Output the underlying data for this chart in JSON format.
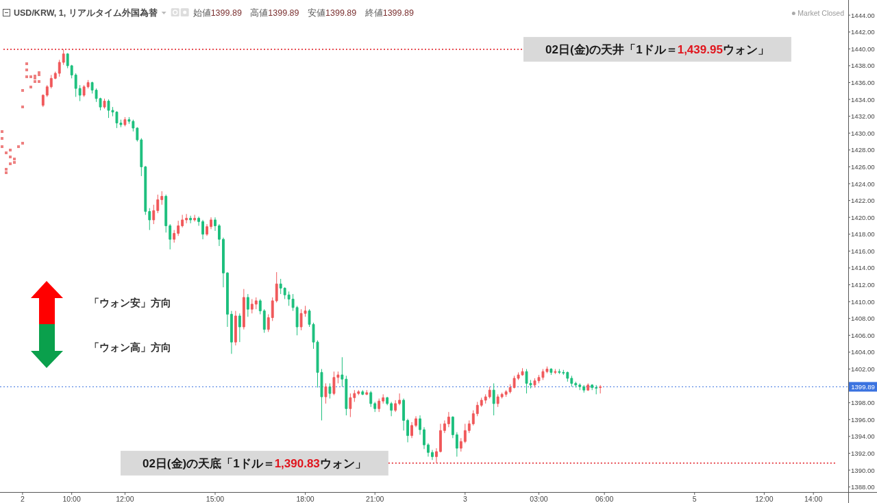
{
  "chart_data": {
    "type": "candlestick",
    "title": "USD/KRW, 1, リアルタイム外国為替",
    "subtitle": "始値1399.89 高値1399.89 安値1399.89 終値1399.89",
    "annotations": [
      "Market Closed",
      "「ウォン安」方向",
      "「ウォン高」方向"
    ],
    "categories": [
      null,
      null,
      null,
      null,
      null,
      "2",
      null,
      null,
      null,
      null,
      null,
      null,
      null,
      null,
      null,
      null,
      null,
      "10:00",
      null,
      null,
      null,
      null,
      null,
      null,
      null,
      null,
      null,
      null,
      null,
      null,
      "12:00",
      null,
      null,
      null,
      null,
      null,
      null,
      null,
      null,
      null,
      null,
      null,
      null,
      null,
      null,
      null,
      null,
      null,
      null,
      null,
      null,
      null,
      "15:00",
      null,
      null,
      null,
      null,
      null,
      null,
      null,
      null,
      null,
      null,
      null,
      null,
      null,
      null,
      null,
      null,
      null,
      null,
      null,
      null,
      null,
      "18:00",
      null,
      null,
      null,
      null,
      null,
      null,
      null,
      null,
      null,
      null,
      null,
      null,
      null,
      null,
      null,
      null,
      "21:00",
      null,
      null,
      null,
      null,
      null,
      null,
      null,
      null,
      null,
      null,
      null,
      null,
      null,
      null,
      null,
      null,
      null,
      null,
      null,
      null,
      null,
      "3",
      null,
      null,
      null,
      null,
      null,
      null,
      null,
      null,
      null,
      null,
      null,
      null,
      null,
      null,
      null,
      null,
      null,
      "03:00",
      null,
      null,
      null,
      null,
      null,
      null,
      null,
      null,
      null,
      null,
      null,
      null,
      null,
      null,
      null,
      "06:00",
      null,
      null,
      null,
      null,
      null,
      null,
      null,
      null,
      null,
      null,
      null,
      null,
      null,
      null,
      null,
      null,
      null,
      null,
      null,
      null,
      null,
      "5",
      null,
      null,
      null,
      null,
      null,
      null,
      null,
      null,
      null,
      null,
      null,
      null,
      null,
      null,
      null,
      null,
      "12:00",
      null,
      null,
      null,
      null,
      null,
      null,
      null,
      null,
      null,
      null,
      null,
      "14:00",
      null,
      null,
      null,
      null,
      null,
      null,
      null,
      null
    ],
    "ohlc": [
      null,
      null,
      null,
      null,
      null,
      null,
      null,
      null,
      null,
      null,
      [
        1433.3,
        1434.6,
        1433.1,
        1434.5
      ],
      [
        1434.5,
        1435.7,
        1434.3,
        1435.5
      ],
      [
        1435.5,
        1436.9,
        1435.3,
        1436.5
      ],
      [
        1436.5,
        1437.3,
        1436.4,
        1437.1
      ],
      [
        1437.1,
        1438.7,
        1436.7,
        1438.4
      ],
      [
        1438.4,
        1439.95,
        1438.1,
        1439.4
      ],
      [
        1439.4,
        1439.5,
        1437.7,
        1438.0
      ],
      [
        1438.0,
        1438.1,
        1436.5,
        1436.9
      ],
      [
        1436.9,
        1437.1,
        1434.3,
        1435.3
      ],
      [
        1435.3,
        1435.7,
        1433.8,
        1434.5
      ],
      [
        1434.5,
        1435.7,
        1434.3,
        1435.5
      ],
      [
        1435.5,
        1436.3,
        1435.3,
        1436.0
      ],
      [
        1436.0,
        1436.1,
        1434.7,
        1435.1
      ],
      [
        1435.1,
        1435.3,
        1433.7,
        1434.1
      ],
      [
        1434.1,
        1434.2,
        1432.7,
        1433.1
      ],
      [
        1433.1,
        1434.1,
        1432.9,
        1433.8
      ],
      [
        1433.8,
        1434.0,
        1431.8,
        1432.7
      ],
      [
        1432.7,
        1433.1,
        1432.0,
        1432.5
      ],
      [
        1432.5,
        1432.6,
        1430.6,
        1431.2
      ],
      [
        1431.2,
        1431.6,
        1430.7,
        1431.0
      ],
      [
        1431.0,
        1431.9,
        1430.8,
        1431.6
      ],
      [
        1431.6,
        1431.9,
        1431.1,
        1431.4
      ],
      [
        1431.4,
        1431.6,
        1430.2,
        1430.6
      ],
      [
        1430.6,
        1430.7,
        1429.0,
        1429.2
      ],
      [
        1429.2,
        1429.4,
        1424.9,
        1426.0
      ],
      [
        1426.0,
        1426.1,
        1420.3,
        1420.7
      ],
      [
        1420.7,
        1421.1,
        1418.5,
        1419.7
      ],
      [
        1419.7,
        1421.5,
        1419.2,
        1420.8
      ],
      [
        1420.8,
        1422.7,
        1420.5,
        1422.1
      ],
      [
        1422.1,
        1423.1,
        1421.5,
        1422.5
      ],
      [
        1422.5,
        1422.7,
        1418.2,
        1419.0
      ],
      [
        1419.0,
        1419.2,
        1416.2,
        1417.4
      ],
      [
        1417.4,
        1418.5,
        1417.0,
        1418.1
      ],
      [
        1418.1,
        1419.6,
        1417.8,
        1419.0
      ],
      [
        1419.0,
        1420.3,
        1418.8,
        1419.7
      ],
      [
        1419.7,
        1420.4,
        1419.3,
        1419.9
      ],
      [
        1419.9,
        1420.2,
        1419.3,
        1419.7
      ],
      [
        1419.7,
        1420.3,
        1419.5,
        1419.9
      ],
      [
        1419.9,
        1420.1,
        1419.0,
        1419.5
      ],
      [
        1419.5,
        1419.7,
        1417.4,
        1418.0
      ],
      [
        1418.0,
        1419.2,
        1417.8,
        1418.9
      ],
      [
        1418.9,
        1420.0,
        1418.6,
        1419.7
      ],
      [
        1419.7,
        1420.0,
        1418.4,
        1419.0
      ],
      [
        1419.0,
        1419.2,
        1416.6,
        1417.4
      ],
      [
        1417.4,
        1417.6,
        1411.7,
        1413.4
      ],
      [
        1413.4,
        1413.5,
        1407.0,
        1408.5
      ],
      [
        1408.5,
        1408.9,
        1403.8,
        1405.2
      ],
      [
        1405.2,
        1408.9,
        1404.8,
        1408.3
      ],
      [
        1408.3,
        1408.6,
        1405.2,
        1407.0
      ],
      [
        1407.0,
        1411.5,
        1406.7,
        1410.5
      ],
      [
        1410.5,
        1410.9,
        1408.2,
        1409.1
      ],
      [
        1409.1,
        1410.3,
        1408.6,
        1409.7
      ],
      [
        1409.7,
        1410.5,
        1409.1,
        1410.1
      ],
      [
        1410.1,
        1410.3,
        1408.5,
        1408.9
      ],
      [
        1408.9,
        1409.1,
        1406.3,
        1406.7
      ],
      [
        1406.7,
        1408.5,
        1406.4,
        1408.1
      ],
      [
        1408.1,
        1410.5,
        1407.7,
        1410.1
      ],
      [
        1410.1,
        1413.5,
        1409.9,
        1412.1
      ],
      [
        1412.1,
        1412.7,
        1410.9,
        1411.6
      ],
      [
        1411.6,
        1411.7,
        1410.3,
        1410.8
      ],
      [
        1410.8,
        1411.2,
        1409.5,
        1410.3
      ],
      [
        1410.3,
        1410.9,
        1408.9,
        1409.3
      ],
      [
        1409.3,
        1409.5,
        1406.0,
        1407.0
      ],
      [
        1407.0,
        1409.1,
        1406.6,
        1408.6
      ],
      [
        1408.6,
        1409.5,
        1408.2,
        1408.9
      ],
      [
        1408.9,
        1409.1,
        1407.0,
        1407.3
      ],
      [
        1407.3,
        1407.5,
        1404.4,
        1405.2
      ],
      [
        1405.2,
        1405.4,
        1399.8,
        1401.6
      ],
      [
        1401.6,
        1402.0,
        1395.9,
        1398.7
      ],
      [
        1398.7,
        1400.3,
        1397.9,
        1399.9
      ],
      [
        1399.9,
        1400.3,
        1398.5,
        1399.1
      ],
      [
        1399.1,
        1401.7,
        1398.9,
        1401.0
      ],
      [
        1401.0,
        1401.7,
        1400.3,
        1401.3
      ],
      [
        1401.3,
        1403.4,
        1399.9,
        1400.8
      ],
      [
        1400.8,
        1401.2,
        1396.5,
        1397.3
      ],
      [
        1397.3,
        1399.1,
        1396.3,
        1398.6
      ],
      [
        1398.6,
        1399.5,
        1398.1,
        1399.1
      ],
      [
        1399.1,
        1399.5,
        1398.9,
        1399.3
      ],
      [
        1399.3,
        1399.5,
        1398.9,
        1399.0
      ],
      [
        1399.0,
        1399.5,
        1398.9,
        1399.2
      ],
      [
        1399.2,
        1399.4,
        1397.5,
        1397.9
      ],
      [
        1397.9,
        1398.1,
        1396.9,
        1397.3
      ],
      [
        1397.3,
        1398.5,
        1396.9,
        1398.2
      ],
      [
        1398.2,
        1399.0,
        1397.9,
        1398.6
      ],
      [
        1398.6,
        1398.7,
        1397.7,
        1397.9
      ],
      [
        1397.9,
        1398.1,
        1396.4,
        1397.1
      ],
      [
        1397.1,
        1398.3,
        1396.9,
        1397.9
      ],
      [
        1397.9,
        1399.1,
        1397.7,
        1398.3
      ],
      [
        1398.3,
        1398.5,
        1394.7,
        1395.9
      ],
      [
        1395.9,
        1396.1,
        1393.3,
        1394.1
      ],
      [
        1394.1,
        1395.7,
        1393.8,
        1395.3
      ],
      [
        1395.3,
        1396.4,
        1395.1,
        1396.1
      ],
      [
        1396.1,
        1396.5,
        1394.2,
        1394.8
      ],
      [
        1394.8,
        1395.1,
        1392.5,
        1393.0
      ],
      [
        1393.0,
        1393.2,
        1391.6,
        1392.1
      ],
      [
        1392.1,
        1392.4,
        1391.2,
        1391.6
      ],
      [
        1391.6,
        1392.6,
        1390.83,
        1392.2
      ],
      [
        1392.2,
        1395.5,
        1392.1,
        1394.7
      ],
      [
        1394.7,
        1395.9,
        1394.4,
        1395.5
      ],
      [
        1395.5,
        1396.9,
        1395.1,
        1396.3
      ],
      [
        1396.3,
        1396.4,
        1393.8,
        1394.2
      ],
      [
        1394.2,
        1394.5,
        1391.6,
        1392.6
      ],
      [
        1392.6,
        1393.8,
        1392.2,
        1393.4
      ],
      [
        1393.4,
        1395.5,
        1393.2,
        1394.7
      ],
      [
        1394.7,
        1395.9,
        1394.4,
        1395.5
      ],
      [
        1395.5,
        1397.1,
        1395.3,
        1396.7
      ],
      [
        1396.7,
        1398.1,
        1396.4,
        1397.7
      ],
      [
        1397.7,
        1398.6,
        1397.5,
        1398.3
      ],
      [
        1398.3,
        1399.0,
        1397.9,
        1398.7
      ],
      [
        1398.7,
        1399.9,
        1398.5,
        1399.5
      ],
      [
        1399.5,
        1400.3,
        1396.5,
        1397.9
      ],
      [
        1397.9,
        1399.0,
        1397.5,
        1398.7
      ],
      [
        1398.7,
        1399.2,
        1398.5,
        1399.0
      ],
      [
        1399.0,
        1399.5,
        1398.7,
        1399.3
      ],
      [
        1399.3,
        1400.2,
        1399.1,
        1399.8
      ],
      [
        1399.8,
        1401.2,
        1399.7,
        1400.9
      ],
      [
        1400.9,
        1401.6,
        1400.7,
        1401.3
      ],
      [
        1401.3,
        1402.1,
        1401.2,
        1401.7
      ],
      [
        1401.7,
        1402.0,
        1399.1,
        1400.3
      ],
      [
        1400.3,
        1400.7,
        1399.7,
        1400.1
      ],
      [
        1400.1,
        1400.9,
        1399.8,
        1400.6
      ],
      [
        1400.6,
        1401.3,
        1400.3,
        1401.0
      ],
      [
        1401.0,
        1402.0,
        1400.7,
        1401.7
      ],
      [
        1401.7,
        1402.3,
        1401.5,
        1402.0
      ],
      [
        1402.0,
        1402.1,
        1401.3,
        1401.6
      ],
      [
        1401.6,
        1402.0,
        1401.4,
        1401.7
      ],
      [
        1401.7,
        1402.0,
        1401.4,
        1401.6
      ],
      [
        1401.6,
        1401.9,
        1401.3,
        1401.6
      ],
      [
        1401.6,
        1401.7,
        1400.5,
        1400.9
      ],
      [
        1400.9,
        1401.2,
        1399.9,
        1400.3
      ],
      [
        1400.3,
        1400.5,
        1399.8,
        1400.1
      ],
      [
        1400.1,
        1400.3,
        1399.5,
        1399.9
      ],
      [
        1399.9,
        1400.1,
        1399.2,
        1399.5
      ],
      [
        1399.5,
        1400.3,
        1399.4,
        1400.1
      ],
      [
        1400.1,
        1400.2,
        1399.5,
        1399.8
      ],
      [
        1399.8,
        1400.1,
        1399.0,
        1399.8
      ],
      [
        1399.8,
        1400.1,
        1399.1,
        1399.89
      ],
      null,
      null,
      null,
      null,
      null,
      null,
      null,
      null,
      null,
      null,
      null,
      null,
      null,
      null,
      null,
      null,
      null,
      null,
      null,
      null,
      null,
      null,
      null,
      null,
      null,
      null,
      null,
      null,
      null,
      null,
      null,
      null,
      null,
      null,
      null,
      null,
      null,
      null,
      null,
      null,
      null,
      null,
      null,
      null,
      null,
      null,
      null,
      null,
      null,
      null,
      null,
      null,
      null,
      null,
      null,
      null,
      null,
      null,
      null,
      null
    ],
    "colors": [
      null,
      null,
      null,
      null,
      null,
      null,
      null,
      null,
      null,
      null,
      "#f0585a",
      "#f0585a",
      "#f0585a",
      "#f0585a",
      "#f0585a",
      "#f0585a",
      "#1cbf7d",
      "#1cbf7d",
      "#1cbf7d",
      "#1cbf7d",
      "#f0585a",
      "#f0585a",
      "#1cbf7d",
      "#1cbf7d",
      "#1cbf7d",
      "#f0585a",
      "#1cbf7d",
      "#1cbf7d",
      "#1cbf7d",
      "#1cbf7d",
      "#f0585a",
      "#1cbf7d",
      "#1cbf7d",
      "#1cbf7d",
      "#1cbf7d",
      "#1cbf7d",
      "#1cbf7d",
      "#f0585a",
      "#f0585a",
      "#f0585a",
      "#1cbf7d",
      "#1cbf7d",
      "#f0585a",
      "#f0585a",
      "#f0585a",
      "#f0585a",
      "#1cbf7d",
      "#f0585a",
      "#1cbf7d",
      "#1cbf7d",
      "#f0585a",
      "#f0585a",
      "#1cbf7d",
      "#1cbf7d",
      "#1cbf7d",
      "#1cbf7d",
      "#1cbf7d",
      "#f0585a",
      "#1cbf7d",
      "#f0585a",
      "#1cbf7d",
      "#f0585a",
      "#f0585a",
      "#1cbf7d",
      "#1cbf7d",
      "#f0585a",
      "#f0585a",
      "#f0585a",
      "#1cbf7d",
      "#1cbf7d",
      "#1cbf7d",
      "#1cbf7d",
      "#1cbf7d",
      "#f0585a",
      "#f0585a",
      "#1cbf7d",
      "#1cbf7d",
      "#1cbf7d",
      "#1cbf7d",
      "#f0585a",
      "#1cbf7d",
      "#f0585a",
      "#f0585a",
      "#1cbf7d",
      "#1cbf7d",
      "#f0585a",
      "#f0585a",
      "#f0585a",
      "#1cbf7d",
      "#f0585a",
      "#1cbf7d",
      "#1cbf7d",
      "#f0585a",
      "#f0585a",
      "#1cbf7d",
      "#1cbf7d",
      "#f0585a",
      "#f0585a",
      "#1cbf7d",
      "#1cbf7d",
      "#f0585a",
      "#f0585a",
      "#1cbf7d",
      "#1cbf7d",
      "#1cbf7d",
      "#1cbf7d",
      "#f0585a",
      "#f0585a",
      "#f0585a",
      "#f0585a",
      "#1cbf7d",
      "#1cbf7d",
      "#f0585a",
      "#f0585a",
      "#f0585a",
      "#f0585a",
      "#f0585a",
      "#f0585a",
      "#f0585a",
      "#f0585a",
      "#1cbf7d",
      "#f0585a",
      "#f0585a",
      "#f0585a",
      "#f0585a",
      "#f0585a",
      "#f0585a",
      "#f0585a",
      "#1cbf7d",
      "#1cbf7d",
      "#f0585a",
      "#f0585a",
      "#f0585a",
      "#f0585a",
      "#1cbf7d",
      "#f0585a",
      "#1cbf7d",
      "#1cbf7d",
      "#1cbf7d",
      "#1cbf7d",
      "#1cbf7d",
      "#1cbf7d",
      "#1cbf7d",
      "#f0585a",
      "#1cbf7d",
      "#1cbf7d",
      "#f0585a",
      null,
      null,
      null,
      null,
      null,
      null,
      null,
      null,
      null,
      null,
      null,
      null,
      null,
      null,
      null,
      null,
      null,
      null,
      null,
      null,
      null,
      null,
      null,
      null,
      null,
      null,
      null,
      null,
      null,
      null,
      null,
      null,
      null,
      null,
      null,
      null,
      null,
      null,
      null,
      null,
      null,
      null,
      null,
      null,
      null,
      null,
      null,
      null,
      null,
      null,
      null,
      null,
      null,
      null,
      null,
      null,
      null,
      null,
      null,
      null
    ],
    "series": [
      {
        "type": "scatter",
        "color": "#ee8080",
        "values": [
          1428.4,
          1427.7,
          1428.0,
          1426.9,
          1428.4,
          1428.8,
          1436.7,
          1436.7,
          1436.1,
          1437.2,
          null,
          null,
          null,
          null,
          null,
          null,
          null,
          null,
          null,
          null,
          null,
          null,
          null,
          null,
          null,
          null,
          null,
          null,
          null,
          null,
          null,
          null,
          null,
          null,
          null,
          null,
          null,
          null,
          null,
          null,
          null,
          null,
          null,
          null,
          null,
          null,
          null,
          null,
          null,
          null,
          null,
          null,
          null,
          null,
          null,
          null,
          null,
          null,
          null,
          null,
          null,
          null,
          null,
          null,
          null,
          null,
          null,
          null,
          null,
          null,
          null,
          null,
          null,
          null,
          null,
          null,
          null,
          null,
          null,
          null,
          null,
          null,
          null,
          null,
          null,
          null,
          null,
          null,
          null,
          null,
          null,
          null,
          null,
          null,
          null,
          null,
          null,
          null,
          null,
          null,
          null,
          null,
          null,
          null,
          null,
          null,
          null,
          null,
          null,
          null,
          null,
          null,
          null,
          null,
          null,
          null,
          null,
          null,
          null,
          null,
          null,
          null,
          null,
          null,
          null,
          null,
          null,
          null,
          null,
          null,
          null,
          null,
          null,
          null,
          null,
          null,
          null,
          null,
          null,
          null,
          null,
          null,
          null,
          null,
          null,
          null,
          null,
          null,
          null,
          null,
          null,
          null,
          null,
          null,
          null,
          null,
          null,
          null,
          null,
          null,
          null,
          null,
          null,
          null,
          null,
          null,
          null,
          null,
          null,
          null,
          null,
          null,
          null,
          null,
          null,
          null,
          null,
          null,
          null,
          null,
          null,
          null,
          null,
          null,
          null,
          null,
          null,
          null,
          null,
          null,
          null,
          null,
          null,
          null,
          null,
          null,
          null,
          null,
          null,
          null,
          null,
          null,
          null,
          null,
          null,
          null,
          null
        ]
      },
      {
        "type": "scatter",
        "color": "#ee8080",
        "values": [
          1429.4,
          1425.3,
          1426.4,
          1426.5,
          null,
          1433.1,
          1438.2,
          1435.5,
          1436.8,
          1436.1,
          null,
          null,
          null,
          null,
          null,
          null,
          null,
          null,
          null,
          null,
          null,
          null,
          null,
          null,
          null,
          null,
          null,
          null,
          null,
          null,
          null,
          null,
          null,
          null,
          null,
          null,
          null,
          null,
          null,
          null,
          null,
          null,
          null,
          null,
          null,
          null,
          null,
          null,
          null,
          null,
          null,
          null,
          null,
          null,
          null,
          null,
          null,
          null,
          null,
          null,
          null,
          null,
          null,
          null,
          null,
          null,
          null,
          null,
          null,
          null,
          null,
          null,
          null,
          null,
          null,
          null,
          null,
          null,
          null,
          null,
          null,
          null,
          null,
          null,
          null,
          null,
          null,
          null,
          null,
          null,
          null,
          null,
          null,
          null,
          null,
          null,
          null,
          null,
          null,
          null,
          null,
          null,
          null,
          null,
          null,
          null,
          null,
          null,
          null,
          null,
          null,
          null,
          null,
          null,
          null,
          null,
          null,
          null,
          null,
          null,
          null,
          null,
          null,
          null,
          null,
          null,
          null,
          null,
          null,
          null,
          null,
          null,
          null,
          null,
          null,
          null,
          null,
          null,
          null,
          null,
          null,
          null,
          null,
          null,
          null,
          null,
          null,
          null,
          null,
          null,
          null,
          null,
          null,
          null,
          null,
          null,
          null,
          null,
          null,
          null,
          null,
          null,
          null,
          null,
          null,
          null,
          null,
          null,
          null,
          null,
          null,
          null,
          null,
          null,
          null,
          null,
          null,
          null,
          null,
          null,
          null,
          null,
          null,
          null,
          null,
          null,
          null,
          null,
          null,
          null,
          null,
          null,
          null,
          null,
          null,
          null,
          null,
          null,
          null,
          null,
          null,
          null,
          null,
          null,
          null,
          null,
          null
        ]
      },
      {
        "type": "scatter",
        "color": "#ee8080",
        "values": [
          1430.2,
          1425.7,
          1427.2,
          null,
          null,
          1435.1,
          1437.5,
          null,
          1436.5,
          1436.9,
          null,
          null,
          null,
          null,
          null,
          null,
          null,
          null,
          null,
          null,
          null,
          null,
          null,
          null,
          null,
          null,
          null,
          null,
          null,
          null,
          null,
          null,
          null,
          null,
          null,
          null,
          null,
          null,
          null,
          null,
          null,
          null,
          null,
          null,
          null,
          null,
          null,
          null,
          null,
          null,
          null,
          null,
          null,
          null,
          null,
          null,
          null,
          null,
          null,
          null,
          null,
          null,
          null,
          null,
          null,
          null,
          null,
          null,
          null,
          null,
          null,
          null,
          null,
          null,
          null,
          null,
          null,
          null,
          null,
          null,
          null,
          null,
          null,
          null,
          null,
          null,
          null,
          null,
          null,
          null,
          null,
          null,
          null,
          null,
          null,
          null,
          null,
          null,
          null,
          null,
          null,
          null,
          null,
          null,
          null,
          null,
          null,
          null,
          null,
          null,
          null,
          null,
          null,
          null,
          null,
          null,
          null,
          null,
          null,
          null,
          null,
          null,
          null,
          null,
          null,
          null,
          null,
          null,
          null,
          null,
          null,
          null,
          null,
          null,
          null,
          null,
          null,
          null,
          null,
          null,
          null,
          null,
          null,
          null,
          null,
          null,
          null,
          null,
          null,
          null,
          null,
          null,
          null,
          null,
          null,
          null,
          null,
          null,
          null,
          null,
          null,
          null,
          null,
          null,
          null,
          null,
          null,
          null,
          null,
          null,
          null,
          null,
          null,
          null,
          null,
          null,
          null,
          null,
          null,
          null,
          null,
          null,
          null,
          null,
          null,
          null,
          null,
          null,
          null,
          null,
          null,
          null,
          null,
          null,
          null,
          null,
          null,
          null,
          null,
          null,
          null,
          null,
          null,
          null,
          null,
          null,
          null
        ]
      }
    ],
    "ylim": [
      1387.4,
      1445.8
    ],
    "yticks": [
      {
        "value": 1388,
        "label": "1388.00"
      },
      {
        "value": 1390,
        "label": "1390.00"
      },
      {
        "value": 1392,
        "label": "1392.00"
      },
      {
        "value": 1394,
        "label": "1394.00"
      },
      {
        "value": 1396,
        "label": "1396.00"
      },
      {
        "value": 1398,
        "label": "1398.00"
      },
      {
        "value": 1402,
        "label": "1402.00"
      },
      {
        "value": 1404,
        "label": "1404.00"
      },
      {
        "value": 1406,
        "label": "1406.00"
      },
      {
        "value": 1408,
        "label": "1408.00"
      },
      {
        "value": 1410,
        "label": "1410.00"
      },
      {
        "value": 1412,
        "label": "1412.00"
      },
      {
        "value": 1414,
        "label": "1414.00"
      },
      {
        "value": 1416,
        "label": "1416.00"
      },
      {
        "value": 1418,
        "label": "1418.00"
      },
      {
        "value": 1420,
        "label": "1420.00"
      },
      {
        "value": 1422,
        "label": "1422.00"
      },
      {
        "value": 1424,
        "label": "1424.00"
      },
      {
        "value": 1426,
        "label": "1426.00"
      },
      {
        "value": 1428,
        "label": "1428.00"
      },
      {
        "value": 1430,
        "label": "1430.00"
      },
      {
        "value": 1432,
        "label": "1432.00"
      },
      {
        "value": 1434,
        "label": "1434.00"
      },
      {
        "value": 1436,
        "label": "1436.00"
      },
      {
        "value": 1438,
        "label": "1438.00"
      },
      {
        "value": 1440,
        "label": "1440.00"
      },
      {
        "value": 1442,
        "label": "1442.00"
      },
      {
        "value": 1444,
        "label": "1444.00"
      }
    ],
    "ref_lines": [
      {
        "axis": "y",
        "value": 1399.89,
        "label": "1399.89",
        "color": "#3b73e0",
        "line_style": "dotted"
      },
      {
        "axis": "y",
        "value": 1439.95,
        "label": "02日(金)の天井「1ドル＝1,439.95ウォン」",
        "color": "#e0141c",
        "line_style": "dotted"
      },
      {
        "axis": "y",
        "value": 1390.83,
        "label": "02日(金)の天底「1ドル＝1,390.83ウォン」",
        "color": "#e0141c",
        "line_style": "dotted"
      }
    ]
  }
}
